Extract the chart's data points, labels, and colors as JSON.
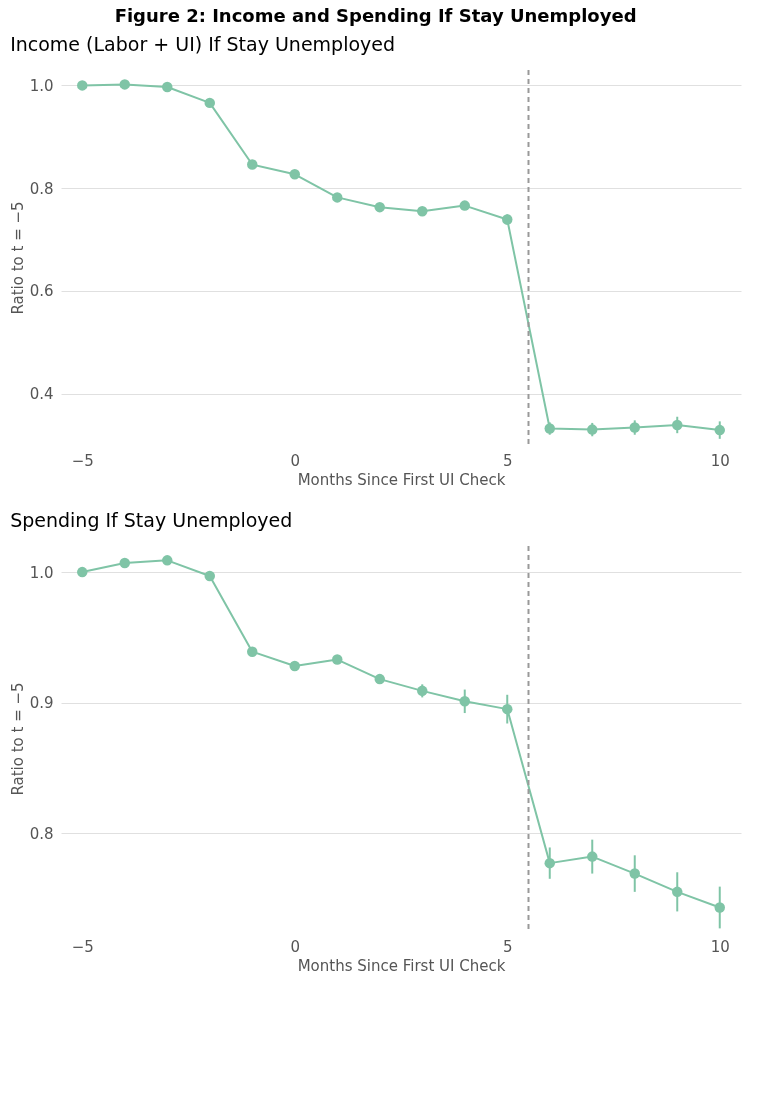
{
  "chart_data": [
    {
      "type": "line",
      "title": "Figure 2: Income and Spending If Stay Unemployed",
      "subtitle": "Income (Labor + UI) If Stay Unemployed",
      "xlabel": "Months Since First UI Check",
      "ylabel": "Ratio to t = −5",
      "x": [
        -5,
        -4,
        -3,
        -2,
        -1,
        0,
        1,
        2,
        3,
        4,
        5,
        6,
        7,
        8,
        9,
        10
      ],
      "series": [
        {
          "color": "#7fc4a6",
          "values": [
            1.0,
            1.002,
            0.997,
            0.966,
            0.846,
            0.827,
            0.782,
            0.763,
            0.755,
            0.766,
            0.739,
            0.332,
            0.33,
            0.334,
            0.339,
            0.329
          ],
          "errors": [
            null,
            null,
            null,
            null,
            null,
            null,
            null,
            null,
            null,
            0.005,
            0.01,
            0.012,
            0.013,
            0.014,
            0.016,
            0.017
          ]
        }
      ],
      "xlim": [
        -5.5,
        10.5
      ],
      "xticks": [
        -5,
        0,
        5,
        10
      ],
      "ylim": [
        0.3,
        1.03
      ],
      "yticks": [
        0.4,
        0.6,
        0.8,
        {
          "value": 1,
          "label": "1.0"
        }
      ],
      "ref_lines": [
        {
          "axis": "x",
          "value": 5.5,
          "color": "#999999",
          "line_style": "dashed"
        }
      ],
      "grid": "y",
      "marker": "circle",
      "line_style": "solid"
    },
    {
      "type": "line",
      "title": "Spending If Stay Unemployed",
      "xlabel": "Months Since First UI Check",
      "ylabel": "Ratio to t = −5",
      "x": [
        -5,
        -4,
        -3,
        -2,
        -1,
        0,
        1,
        2,
        3,
        4,
        5,
        6,
        7,
        8,
        9,
        10
      ],
      "series": [
        {
          "color": "#7fc4a6",
          "values": [
            1.0,
            1.007,
            1.009,
            0.997,
            0.939,
            0.928,
            0.933,
            0.918,
            0.909,
            0.901,
            0.895,
            0.777,
            0.782,
            0.769,
            0.755,
            0.743
          ],
          "errors": [
            null,
            null,
            null,
            null,
            null,
            null,
            null,
            0.003,
            0.005,
            0.009,
            0.011,
            0.012,
            0.013,
            0.014,
            0.015,
            0.016
          ]
        }
      ],
      "xlim": [
        -5.5,
        10.5
      ],
      "xticks": [
        -5,
        0,
        5,
        10
      ],
      "ylim": [
        0.725,
        1.02
      ],
      "yticks": [
        0.8,
        0.9,
        {
          "value": 1,
          "label": "1.0"
        }
      ],
      "ref_lines": [
        {
          "axis": "x",
          "value": 5.5,
          "color": "#999999",
          "line_style": "dashed"
        }
      ],
      "grid": "y",
      "marker": "circle",
      "line_style": "solid"
    }
  ]
}
